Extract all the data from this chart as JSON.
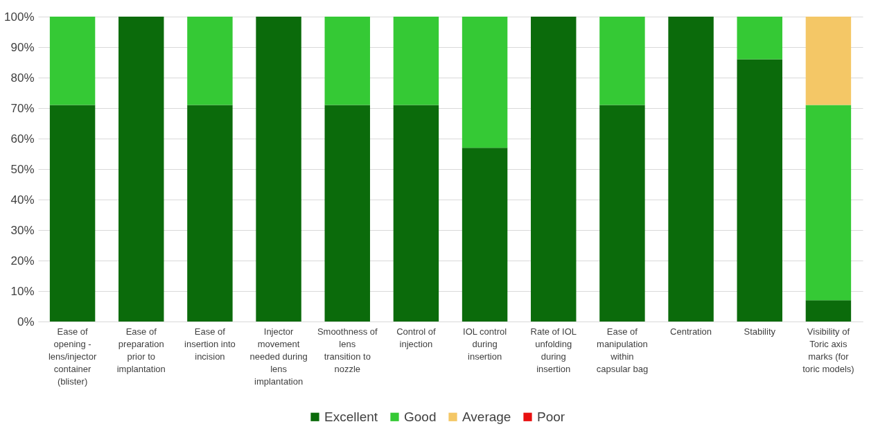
{
  "chart_data": {
    "type": "bar",
    "stacked": true,
    "categories": [
      "Ease of opening - lens/injector container (blister)",
      "Ease of preparation prior to implantation",
      "Ease of insertion into incision",
      "Injector movement needed during lens implantation",
      "Smoothness of lens transition to nozzle",
      "Control of injection",
      "IOL control during insertion",
      "Rate of IOL unfolding during insertion",
      "Ease of manipulation within capsular bag",
      "Centration",
      "Stability",
      "Visibility of Toric axis marks (for toric models)"
    ],
    "series": [
      {
        "name": "Excellent",
        "color": "#0b6b0b",
        "values": [
          71,
          100,
          71,
          100,
          71,
          71,
          57,
          100,
          71,
          100,
          86,
          7
        ]
      },
      {
        "name": "Good",
        "color": "#35c935",
        "values": [
          29,
          0,
          29,
          0,
          29,
          29,
          43,
          0,
          29,
          0,
          14,
          64
        ]
      },
      {
        "name": "Average",
        "color": "#f4c766",
        "values": [
          0,
          0,
          0,
          0,
          0,
          0,
          0,
          0,
          0,
          0,
          0,
          29
        ]
      },
      {
        "name": "Poor",
        "color": "#e81010",
        "values": [
          0,
          0,
          0,
          0,
          0,
          0,
          0,
          0,
          0,
          0,
          0,
          0
        ]
      }
    ],
    "ylim": [
      0,
      100
    ],
    "yticks": [
      {
        "value": 0,
        "label": "0%"
      },
      {
        "value": 10,
        "label": "10%"
      },
      {
        "value": 20,
        "label": "20%"
      },
      {
        "value": 30,
        "label": "30%"
      },
      {
        "value": 40,
        "label": "40%"
      },
      {
        "value": 50,
        "label": "50%"
      },
      {
        "value": 60,
        "label": "60%"
      },
      {
        "value": 70,
        "label": "70%"
      },
      {
        "value": 80,
        "label": "80%"
      },
      {
        "value": 90,
        "label": "90%"
      },
      {
        "value": 100,
        "label": "100%"
      }
    ],
    "grid": "y",
    "legend": "bottom"
  }
}
